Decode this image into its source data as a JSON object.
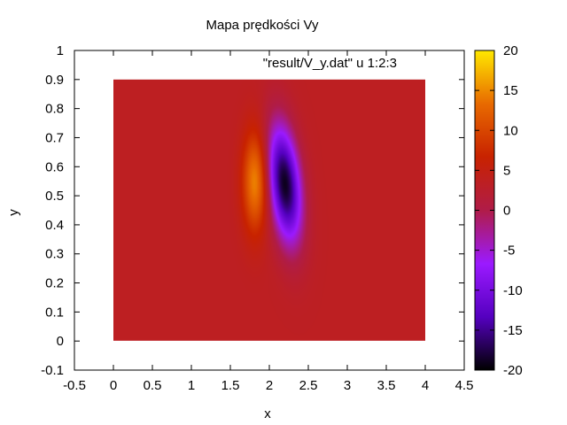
{
  "chart_data": {
    "type": "heatmap",
    "title": "Mapa prędkości Vy",
    "xlabel": "x",
    "ylabel": "y",
    "xlim": [
      -0.5,
      4.5
    ],
    "ylim": [
      -0.1,
      1.0
    ],
    "x_ticks": [
      "-0.5",
      "0",
      "0.5",
      "1",
      "1.5",
      "2",
      "2.5",
      "3",
      "3.5",
      "4",
      "4.5"
    ],
    "y_ticks": [
      "-0.1",
      "0",
      "0.1",
      "0.2",
      "0.3",
      "0.4",
      "0.5",
      "0.6",
      "0.7",
      "0.8",
      "0.9",
      "1"
    ],
    "legend_entry": "\"result/V_y.dat\" u 1:2:3",
    "legend_position": "top-right",
    "colorbar": {
      "range": [
        -20,
        20
      ],
      "ticks": [
        "20",
        "15",
        "10",
        "5",
        "0",
        "-5",
        "-10",
        "-15",
        "-20"
      ],
      "palette": [
        "#000000",
        "#5500c0",
        "#9b1aff",
        "#b01c48",
        "#c82200",
        "#e86a00",
        "#ffe800"
      ]
    },
    "data_extent": {
      "x": [
        0,
        4
      ],
      "y": [
        0,
        0.9
      ],
      "background_value": 3.5
    },
    "features": [
      {
        "label": "maximum",
        "x": 1.82,
        "y": 0.55,
        "value": 15
      },
      {
        "label": "minimum",
        "x": 2.2,
        "y": 0.54,
        "value": -19
      }
    ],
    "grid": false
  }
}
